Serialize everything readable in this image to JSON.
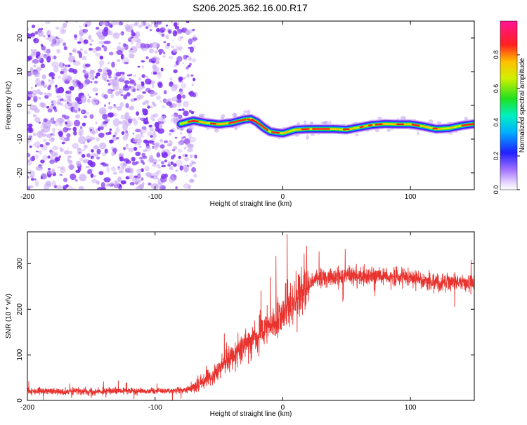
{
  "title": "S206.2025.362.16.00.R17",
  "colors": {
    "snr_line": "#e8332f",
    "scatter_primary": "#7a2cf0",
    "scatter_light": "#c8a8f4",
    "frame": "#000000"
  },
  "chart_data": [
    {
      "type": "heatmap",
      "name": "spectrogram",
      "title": "",
      "xlabel": "Height of straight line (km)",
      "ylabel": "Frequency (Hz)",
      "xlim": [
        -200,
        150
      ],
      "ylim": [
        -25,
        25
      ],
      "xticks": [
        -200,
        -100,
        0,
        100
      ],
      "xtick_labels": [
        "-200",
        "-100",
        "0",
        "100"
      ],
      "yticks": [
        -20,
        -10,
        0,
        10,
        20
      ],
      "ytick_labels": [
        "-20",
        "-10",
        "0",
        "10",
        "20"
      ],
      "noise_region_x": [
        -200,
        -72
      ],
      "track": {
        "x": [
          -80,
          -70,
          -60,
          -50,
          -40,
          -30,
          -25,
          -20,
          -15,
          -10,
          -5,
          0,
          10,
          20,
          30,
          40,
          50,
          60,
          70,
          80,
          90,
          100,
          110,
          120,
          130,
          140,
          150
        ],
        "y": [
          -5.5,
          -4.5,
          -5.2,
          -5.6,
          -5.2,
          -4.2,
          -4.0,
          -5.0,
          -6.6,
          -7.8,
          -8.1,
          -8.3,
          -7.2,
          -7.0,
          -7.0,
          -7.0,
          -7.2,
          -6.5,
          -5.8,
          -5.5,
          -5.6,
          -5.6,
          -6.2,
          -7.0,
          -6.8,
          -6.0,
          -5.5
        ]
      },
      "colorbar": {
        "label": "Normalized spectral amplitude",
        "range": [
          0,
          1
        ],
        "ticks": [
          0.0,
          0.2,
          0.4,
          0.6,
          0.8
        ],
        "tick_labels": [
          "0.0",
          "0.2",
          "0.4",
          "0.6",
          "0.8"
        ]
      }
    },
    {
      "type": "line",
      "name": "snr",
      "title": "",
      "xlabel": "Height of straight line (km)",
      "ylabel": "SNR (10 * v/v)",
      "xlim": [
        -200,
        150
      ],
      "ylim": [
        0,
        370
      ],
      "xticks": [
        -200,
        -100,
        0,
        100
      ],
      "xtick_labels": [
        "-200",
        "-100",
        "0",
        "100"
      ],
      "yticks": [
        0,
        100,
        200,
        300
      ],
      "ytick_labels": [
        "0",
        "100",
        "200",
        "300"
      ],
      "series": [
        {
          "name": "SNR",
          "x": [
            -200,
            -150,
            -100,
            -75,
            -72,
            -65,
            -55,
            -45,
            -35,
            -25,
            -15,
            -5,
            5,
            15,
            25,
            35,
            45,
            55,
            65,
            75,
            85,
            95,
            105,
            115,
            125,
            135,
            145,
            150
          ],
          "y": [
            20,
            20,
            21,
            22,
            28,
            35,
            55,
            85,
            110,
            135,
            150,
            175,
            210,
            240,
            265,
            270,
            268,
            275,
            272,
            275,
            270,
            272,
            268,
            260,
            258,
            262,
            258,
            255
          ]
        }
      ]
    }
  ]
}
